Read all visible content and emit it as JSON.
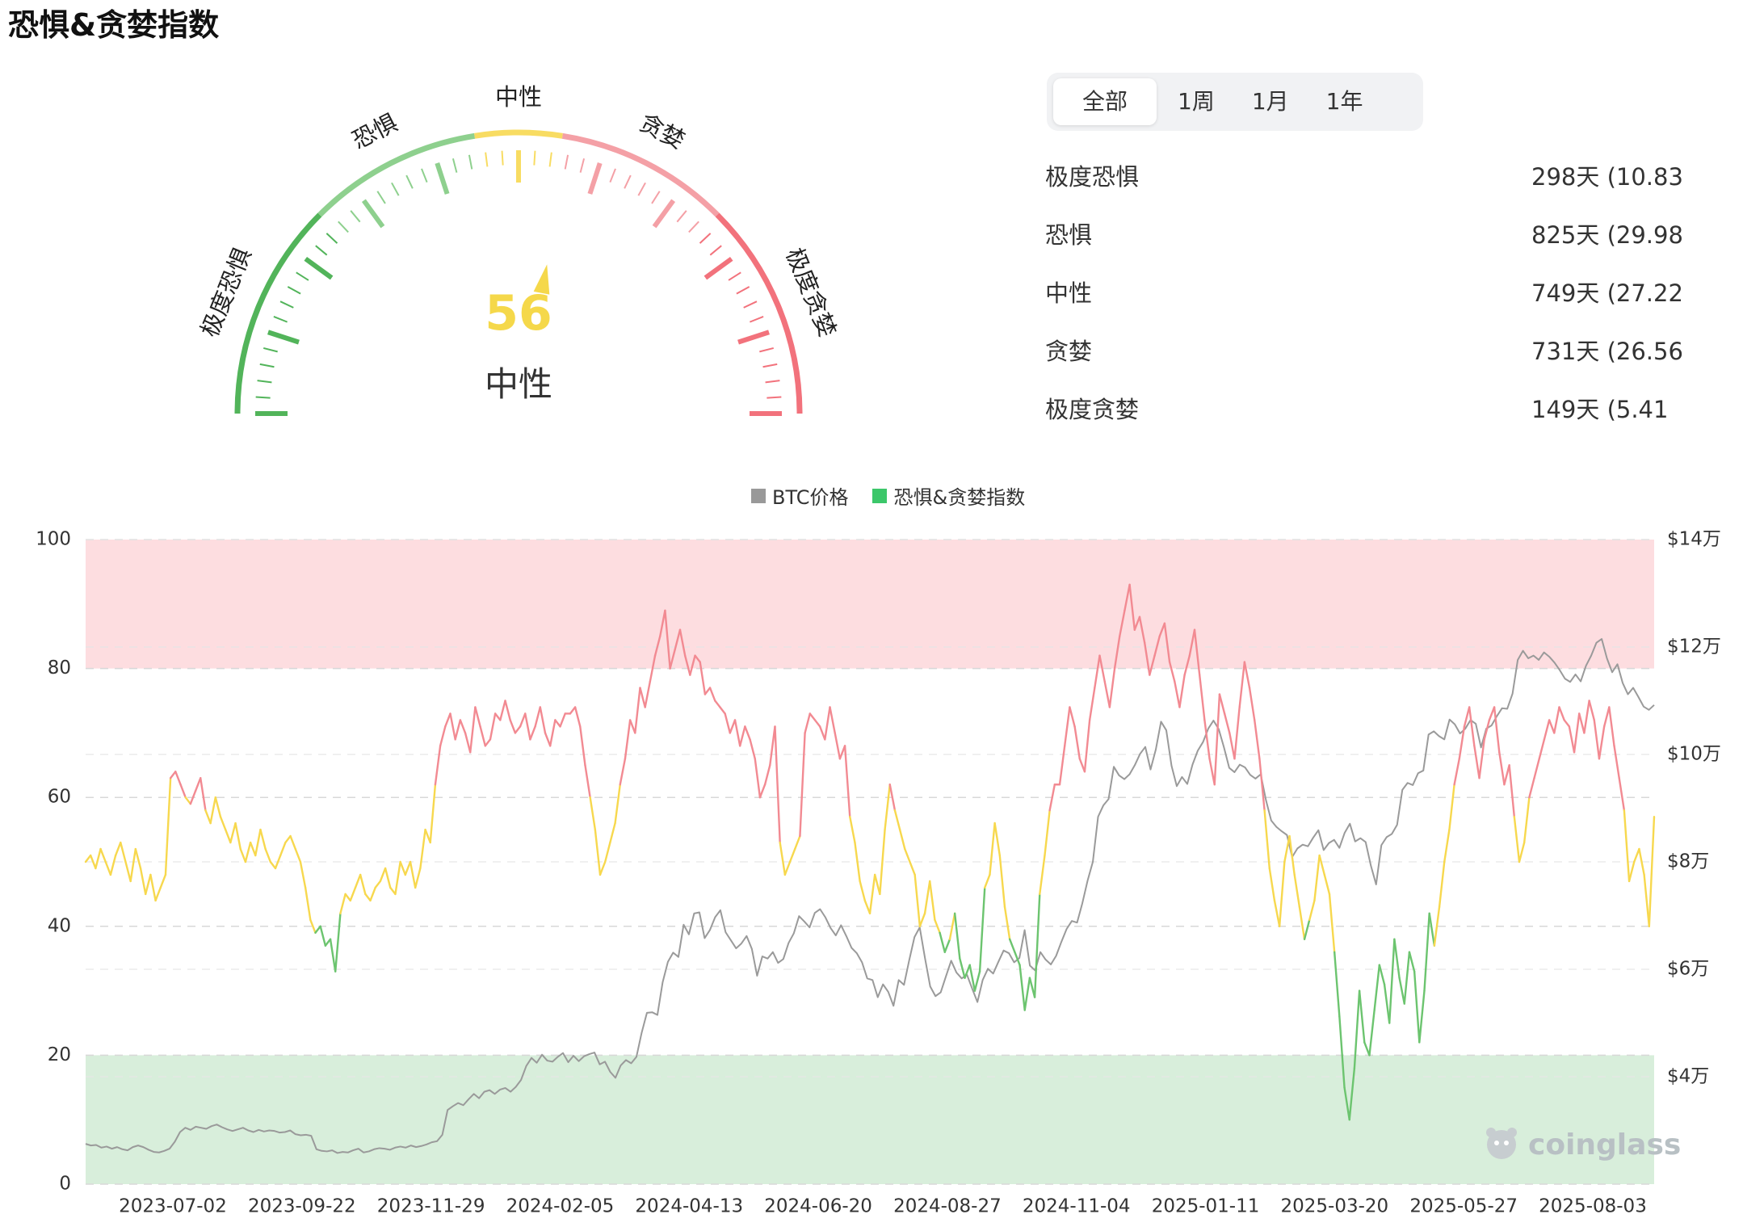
{
  "page": {
    "title": "恐惧&贪婪指数"
  },
  "gauge": {
    "value": 56,
    "value_label": "56",
    "status": "中性",
    "zones": [
      "极度恐惧",
      "恐惧",
      "中性",
      "贪婪",
      "极度贪婪"
    ],
    "colors": {
      "extreme_fear": "#52b45a",
      "fear": "#8ed08e",
      "neutral": "#f8dc62",
      "greed": "#f4a0a6",
      "extreme_greed": "#f2727c",
      "value": "#f5d84a"
    }
  },
  "periods": {
    "selected": "全部",
    "options": [
      "全部",
      "1周",
      "1月",
      "1年"
    ]
  },
  "stats": [
    {
      "label": "极度恐惧",
      "value": "298天 (10.83"
    },
    {
      "label": "恐惧",
      "value": "825天 (29.98"
    },
    {
      "label": "中性",
      "value": "749天 (27.22"
    },
    {
      "label": "贪婪",
      "value": "731天 (26.56"
    },
    {
      "label": "极度贪婪",
      "value": "149天 (5.41"
    }
  ],
  "chart_data": {
    "type": "line",
    "legend": [
      {
        "name": "BTC价格",
        "color": "#999999"
      },
      {
        "name": "恐惧&贪婪指数",
        "color": "#3cc76a"
      }
    ],
    "x_tick_labels": [
      "2023-07-02",
      "2023-09-22",
      "2023-11-29",
      "2024-02-05",
      "2024-04-13",
      "2024-06-20",
      "2024-08-27",
      "2024-11-04",
      "2025-01-11",
      "2025-03-20",
      "2025-05-27",
      "2025-08-03"
    ],
    "y_left": {
      "range": [
        0,
        100
      ],
      "ticks": [
        0,
        20,
        40,
        60,
        80,
        100
      ],
      "tick_labels": [
        "0",
        "20",
        "40",
        "60",
        "80",
        "100"
      ]
    },
    "y_right": {
      "range": [
        20000,
        140000
      ],
      "ticks": [
        40000,
        60000,
        80000,
        100000,
        120000,
        140000
      ],
      "tick_labels": [
        "$4万",
        "$6万",
        "$8万",
        "$10万",
        "$12万",
        "$14万"
      ]
    },
    "bands": [
      {
        "from": 80,
        "to": 100,
        "color": "#fddde0"
      },
      {
        "from": 0,
        "to": 20,
        "color": "#d8eedb"
      }
    ],
    "index_series": {
      "name": "恐惧&贪婪指数",
      "date_start": "2023-05-18",
      "date_end": "2025-08-31",
      "values": [
        50,
        51,
        49,
        52,
        50,
        48,
        51,
        53,
        50,
        47,
        52,
        49,
        45,
        48,
        44,
        46,
        48,
        63,
        64,
        62,
        60,
        59,
        61,
        63,
        58,
        56,
        60,
        57,
        55,
        53,
        56,
        52,
        50,
        53,
        51,
        55,
        52,
        50,
        49,
        51,
        53,
        54,
        52,
        50,
        46,
        41,
        39,
        40,
        37,
        38,
        33,
        42,
        45,
        44,
        46,
        48,
        45,
        44,
        46,
        47,
        49,
        46,
        45,
        50,
        48,
        50,
        46,
        49,
        55,
        53,
        62,
        68,
        71,
        73,
        69,
        72,
        70,
        67,
        74,
        71,
        68,
        69,
        73,
        72,
        75,
        72,
        70,
        71,
        73,
        69,
        71,
        74,
        70,
        68,
        72,
        71,
        73,
        73,
        74,
        71,
        65,
        60,
        55,
        48,
        50,
        53,
        56,
        62,
        66,
        72,
        70,
        77,
        74,
        78,
        82,
        85,
        89,
        80,
        83,
        86,
        82,
        79,
        82,
        81,
        76,
        77,
        75,
        74,
        73,
        70,
        72,
        68,
        71,
        69,
        66,
        60,
        62,
        65,
        71,
        53,
        48,
        50,
        52,
        54,
        70,
        73,
        72,
        71,
        69,
        74,
        70,
        66,
        68,
        57,
        53,
        47,
        44,
        42,
        48,
        45,
        55,
        62,
        58,
        55,
        52,
        50,
        48,
        40,
        42,
        47,
        41,
        39,
        36,
        38,
        42,
        35,
        32,
        34,
        30,
        33,
        46,
        48,
        56,
        51,
        43,
        38,
        36,
        34,
        27,
        32,
        29,
        45,
        51,
        58,
        62,
        62,
        68,
        74,
        71,
        66,
        64,
        72,
        77,
        82,
        78,
        74,
        80,
        85,
        89,
        93,
        86,
        88,
        84,
        79,
        82,
        85,
        87,
        81,
        78,
        74,
        79,
        82,
        86,
        79,
        72,
        66,
        62,
        76,
        73,
        70,
        66,
        74,
        81,
        77,
        72,
        66,
        58,
        49,
        44,
        40,
        50,
        54,
        48,
        43,
        38,
        41,
        44,
        51,
        48,
        45,
        36,
        26,
        15,
        10,
        18,
        30,
        22,
        20,
        27,
        34,
        31,
        25,
        38,
        32,
        28,
        36,
        33,
        22,
        30,
        42,
        37,
        43,
        50,
        55,
        62,
        66,
        71,
        74,
        68,
        63,
        69,
        72,
        74,
        67,
        62,
        65,
        57,
        50,
        53,
        60,
        63,
        66,
        69,
        72,
        70,
        74,
        72,
        71,
        67,
        73,
        70,
        75,
        72,
        66,
        71,
        74,
        68,
        63,
        58,
        47,
        50,
        52,
        48,
        40,
        57
      ]
    },
    "btc_series": {
      "name": "BTC价格",
      "values": [
        27500,
        27200,
        27300,
        26800,
        27000,
        26600,
        26900,
        26500,
        26300,
        26900,
        27200,
        26900,
        26400,
        26000,
        25900,
        26200,
        26600,
        27900,
        29700,
        30500,
        30100,
        30700,
        30500,
        30300,
        30800,
        31100,
        30600,
        30200,
        29900,
        30200,
        30500,
        30000,
        29700,
        30100,
        29800,
        30000,
        29900,
        29600,
        29700,
        30000,
        29300,
        29100,
        29200,
        29000,
        26500,
        26200,
        26100,
        26300,
        25800,
        26000,
        25900,
        26300,
        26600,
        25900,
        26100,
        26500,
        26700,
        26600,
        26400,
        26800,
        27000,
        26800,
        27200,
        26900,
        27100,
        27400,
        27800,
        28000,
        29200,
        33800,
        34500,
        35100,
        34700,
        35800,
        36800,
        36000,
        37200,
        37500,
        36800,
        37600,
        37900,
        37200,
        38100,
        39400,
        42000,
        43500,
        42600,
        44100,
        43000,
        42800,
        43700,
        44400,
        42700,
        43900,
        42900,
        43800,
        44200,
        44500,
        42300,
        42800,
        40900,
        39800,
        42100,
        43100,
        42500,
        43700,
        48200,
        51900,
        52000,
        51500,
        57600,
        61400,
        63100,
        62300,
        68300,
        66500,
        70400,
        70600,
        65800,
        67300,
        69700,
        71000,
        66900,
        65400,
        63900,
        64800,
        66200,
        63800,
        58800,
        62400,
        62000,
        63200,
        61200,
        61900,
        64900,
        66700,
        69900,
        68900,
        67800,
        70500,
        71200,
        69700,
        67700,
        66300,
        68200,
        66200,
        64000,
        63000,
        61300,
        58300,
        58000,
        54800,
        57200,
        55800,
        53200,
        58000,
        57100,
        61700,
        66000,
        67800,
        62100,
        56800,
        55000,
        55700,
        58700,
        61600,
        59400,
        58300,
        59000,
        56400,
        53900,
        58000,
        60100,
        59200,
        61400,
        63500,
        63000,
        61300,
        62100,
        67300,
        60700,
        59800,
        63200,
        61800,
        60900,
        62500,
        65100,
        67500,
        69000,
        68700,
        72300,
        76500,
        80000,
        88400,
        90500,
        91700,
        97700,
        96100,
        95400,
        96300,
        98000,
        100100,
        101400,
        97200,
        100900,
        106100,
        104500,
        97900,
        94100,
        95800,
        94500,
        98100,
        100700,
        102300,
        104800,
        106300,
        104700,
        101300,
        97500,
        96700,
        98100,
        97600,
        96200,
        95500,
        96300,
        91500,
        87700,
        86500,
        85700,
        85000,
        80900,
        82500,
        83200,
        82900,
        84500,
        85900,
        82200,
        83500,
        84100,
        82600,
        85400,
        87100,
        83800,
        84400,
        83700,
        79300,
        75800,
        83100,
        84600,
        85200,
        86900,
        93400,
        94700,
        94300,
        96500,
        97000,
        103700,
        104300,
        103400,
        102800,
        106500,
        105600,
        103900,
        104800,
        106400,
        105700,
        101300,
        104800,
        105400,
        107100,
        108600,
        108500,
        111300,
        117600,
        119300,
        117900,
        118400,
        117600,
        119000,
        118200,
        117100,
        115700,
        114100,
        113500,
        114900,
        113600,
        116500,
        118400,
        120800,
        121500,
        117900,
        115300,
        116800,
        113300,
        111200,
        112400,
        110700,
        108900,
        108300,
        109200
      ]
    }
  }
}
